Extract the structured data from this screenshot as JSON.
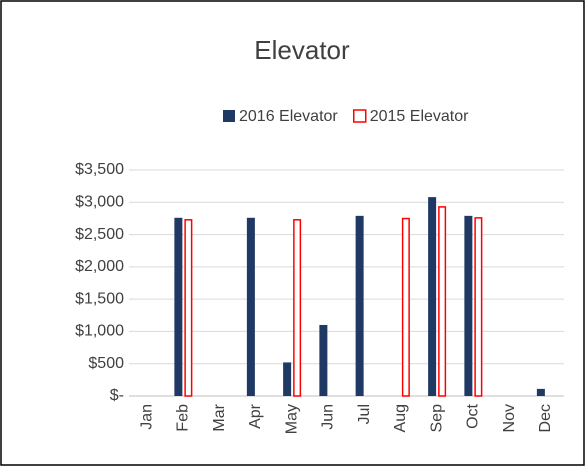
{
  "chart_data": {
    "type": "bar",
    "title": "Elevator",
    "categories": [
      "Jan",
      "Feb",
      "Mar",
      "Apr",
      "May",
      "Jun",
      "Jul",
      "Aug",
      "Sep",
      "Oct",
      "Nov",
      "Dec"
    ],
    "series": [
      {
        "name": "2016 Elevator",
        "color": "#203864",
        "values": [
          null,
          2760,
          null,
          2760,
          520,
          1100,
          2790,
          null,
          3080,
          2790,
          null,
          110
        ]
      },
      {
        "name": "2015 Elevator",
        "color": "#ff0000",
        "values": [
          null,
          2740,
          null,
          null,
          2740,
          null,
          null,
          2760,
          2940,
          2770,
          null,
          null
        ]
      }
    ],
    "ylim": [
      0,
      3500
    ],
    "yticks": [
      {
        "value": 0,
        "label": "$-"
      },
      {
        "value": 500,
        "label": "$500"
      },
      {
        "value": 1000,
        "label": "$1,000"
      },
      {
        "value": 1500,
        "label": "$1,500"
      },
      {
        "value": 2000,
        "label": "$2,000"
      },
      {
        "value": 2500,
        "label": "$2,500"
      },
      {
        "value": 3000,
        "label": "$3,000"
      },
      {
        "value": 3500,
        "label": "$3,500"
      }
    ],
    "grid": true,
    "legend": "top"
  }
}
